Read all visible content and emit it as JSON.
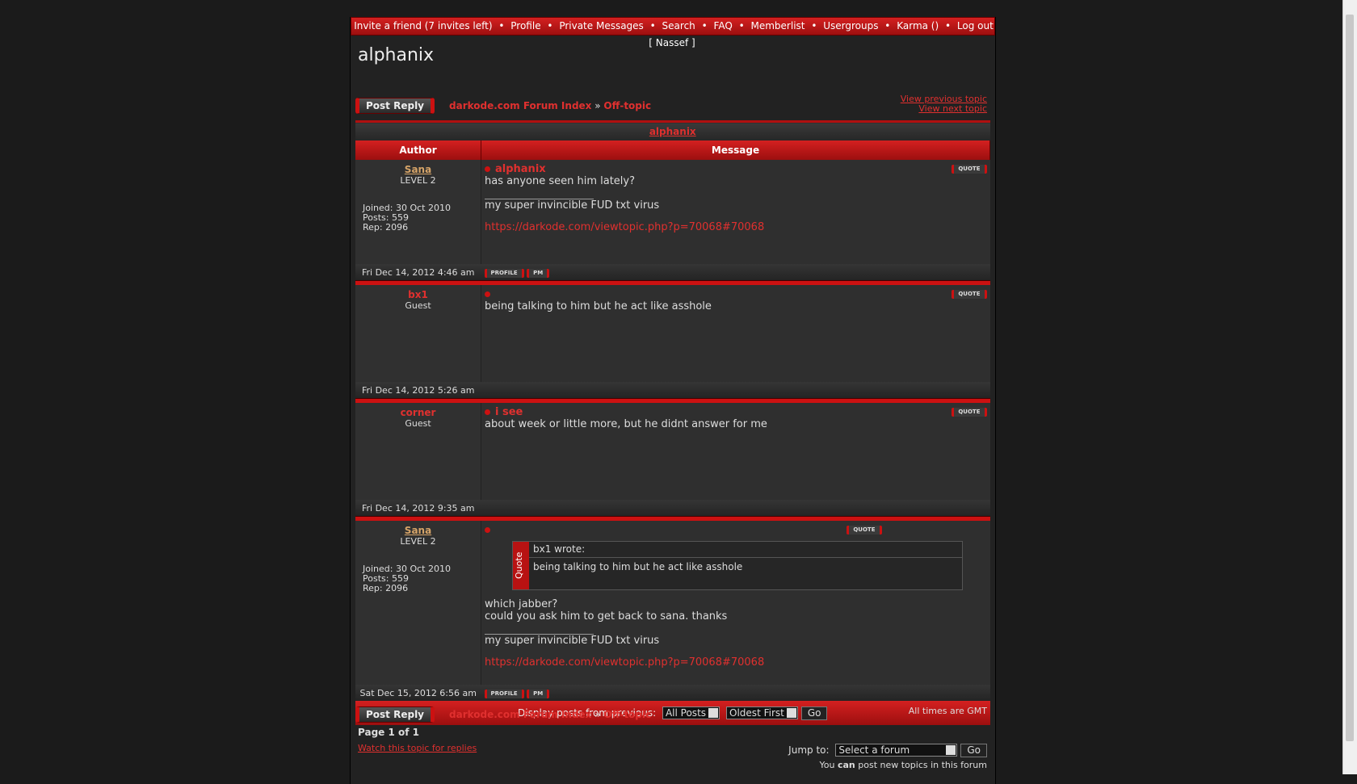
{
  "nav": {
    "links": [
      "Invite a friend (7 invites left)",
      "Profile",
      "Private Messages",
      "Search",
      "FAQ",
      "Memberlist",
      "Usergroups",
      "Karma ()",
      "Log out [ Nassef ]"
    ],
    "separator": "•"
  },
  "topic_title": "alphanix",
  "buttons": {
    "post_reply": "Post Reply",
    "profile": "PROFILE",
    "pm": "PM",
    "quote": "QUOTE",
    "go": "Go"
  },
  "breadcrumb": {
    "items": [
      "darkode.com Forum Index",
      "Off-topic"
    ],
    "separator": "»"
  },
  "topic_nav": [
    "View previous topic",
    "View next topic"
  ],
  "table": {
    "title": "alphanix",
    "headers": [
      "Author",
      "Message"
    ]
  },
  "posts": [
    {
      "author": "Sana",
      "rank": "LEVEL 2",
      "joined": "Joined: 30 Oct 2010",
      "post_count": "Posts: 559",
      "rep": "Rep: 2096",
      "subject": "alphanix",
      "body": [
        "has anyone seen him lately?"
      ],
      "signature": {
        "text": "my super invincible FUD txt virus",
        "link": "https://darkode.com/viewtopic.php?p=70068#70068"
      },
      "date": "Fri Dec 14, 2012 4:46 am"
    },
    {
      "author": "bx1",
      "rank": "Guest",
      "body": [
        "being talking to him but he act like asshole"
      ],
      "date": "Fri Dec 14, 2012 5:26 am"
    },
    {
      "author": "corner",
      "rank": "Guest",
      "subject": "i see",
      "body": [
        "about week or little more, but he didnt answer for me"
      ],
      "date": "Fri Dec 14, 2012 9:35 am"
    },
    {
      "author": "Sana",
      "rank": "LEVEL 2",
      "joined": "Joined: 30 Oct 2010",
      "post_count": "Posts: 559",
      "rep": "Rep: 2096",
      "quote": {
        "label": "Quote",
        "header": "bx1 wrote:",
        "text": "being talking to him but he act like asshole"
      },
      "body": [
        "which jabber?",
        "could you ask him to get back to sana. thanks"
      ],
      "signature": {
        "text": "my super invincible FUD txt virus",
        "link": "https://darkode.com/viewtopic.php?p=70068#70068"
      },
      "date": "Sat Dec 15, 2012 6:56 am"
    }
  ],
  "footer": {
    "display_label": "Display posts from previous:",
    "select_posts": "All Posts",
    "select_order": "Oldest First",
    "timezone": "All times are GMT",
    "page": "Page 1 of 1",
    "watch": "Watch this topic for replies",
    "jump_label": "Jump to:",
    "jump_select": "Select a forum",
    "permission": [
      "You",
      "can",
      "post new topics in this forum"
    ]
  }
}
